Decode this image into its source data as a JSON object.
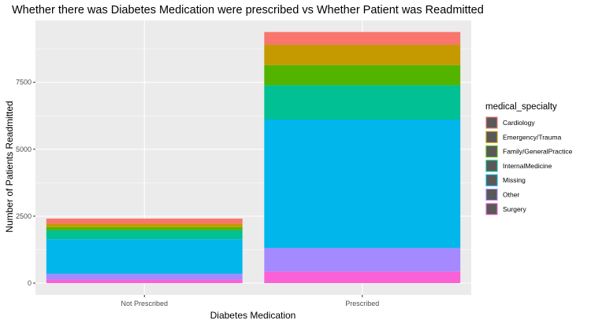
{
  "chart_data": {
    "type": "bar",
    "stacked": true,
    "title": "Whether there was Diabetes Medication were prescribed vs Whether Patient was Readmitted",
    "xlabel": "Diabetes Medication",
    "ylabel": "Number of Patients Readmitted",
    "categories": [
      "Not Prescribed",
      "Prescribed"
    ],
    "ylim": [
      0,
      9400
    ],
    "yticks": [
      0,
      2500,
      5000,
      7500
    ],
    "ytick_labels": [
      "0",
      "2500",
      "5000",
      "7500"
    ],
    "grid": true,
    "legend": {
      "title": "medical_specialty",
      "position": "right"
    },
    "series": [
      {
        "name": "Cardiology",
        "color": "#F8766D",
        "values": [
          190,
          480
        ]
      },
      {
        "name": "Emergency/Trauma",
        "color": "#C49A00",
        "values": [
          130,
          760
        ]
      },
      {
        "name": "Family/GeneralPractice",
        "color": "#53B400",
        "values": [
          120,
          750
        ]
      },
      {
        "name": "InternalMedicine",
        "color": "#00C094",
        "values": [
          330,
          1280
        ]
      },
      {
        "name": "Missing",
        "color": "#00B6EB",
        "values": [
          1290,
          4800
        ]
      },
      {
        "name": "Other",
        "color": "#A58AFF",
        "values": [
          220,
          880
        ]
      },
      {
        "name": "Surgery",
        "color": "#FB61D7",
        "values": [
          130,
          430
        ]
      }
    ]
  }
}
